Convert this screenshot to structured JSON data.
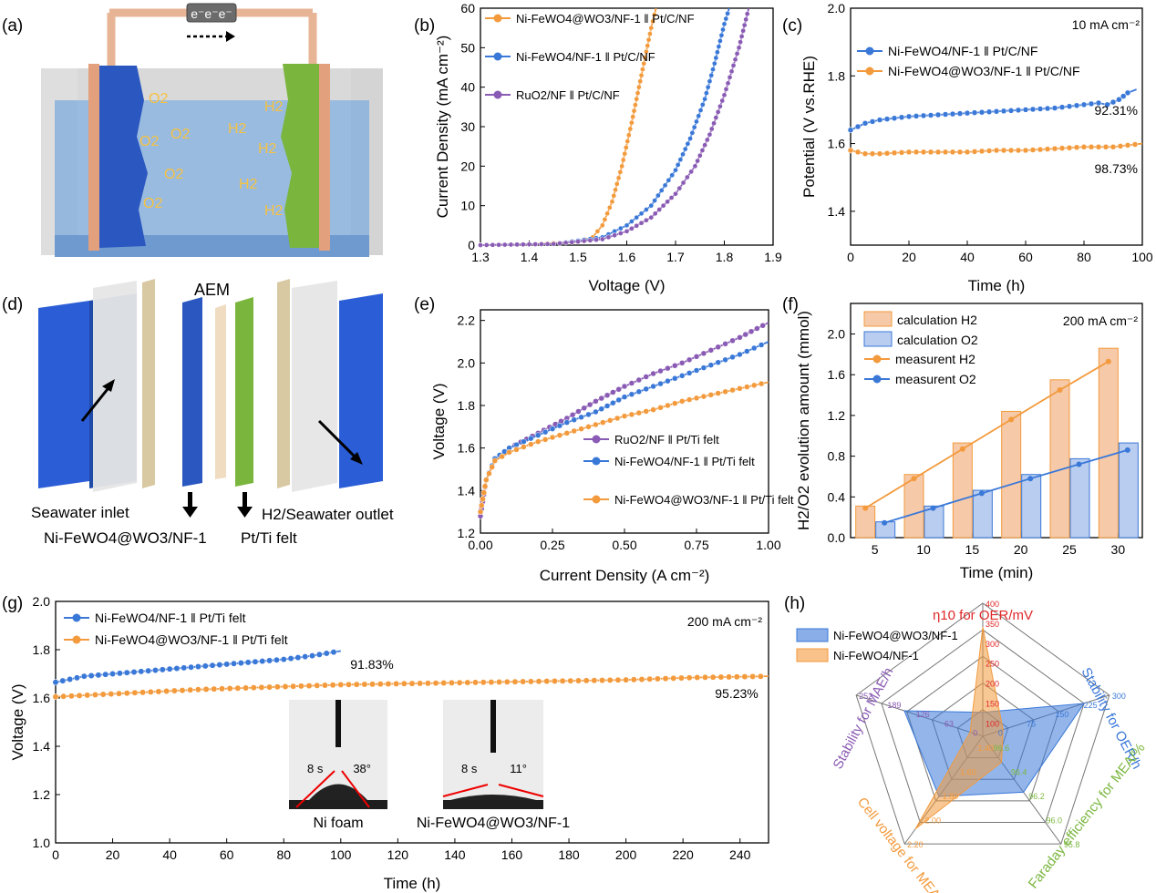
{
  "colors": {
    "orange": "#f39a3c",
    "blue": "#3a78d8",
    "purple": "#8a5bb4",
    "green": "#7ab63e",
    "electrolyte": "#8fb4dd",
    "blue_plate": "#2a57c0",
    "copper": "#e3a07c",
    "red_label": "#e0282a"
  },
  "panel_a": {
    "label": "(a)",
    "battery_label": "e⁻e⁻e⁻",
    "o2_label": "O2",
    "h2_label": "H2"
  },
  "panel_d": {
    "label": "(d)",
    "aem_label": "AEM",
    "inlet_label": "Seawater inlet",
    "outlet_label": "H2/Seawater outlet",
    "anode_label": "Ni-FeWO4@WO3/NF-1",
    "cathode_label": "Pt/Ti felt"
  },
  "chart_data": [
    {
      "panel": "(b)",
      "type": "line",
      "xlabel": "Voltage (V)",
      "ylabel": "Current Density (mA cm⁻²)",
      "xlim": [
        1.3,
        1.9
      ],
      "ylim": [
        0,
        60
      ],
      "xticks": [
        "1.3",
        "1.4",
        "1.5",
        "1.6",
        "1.7",
        "1.8",
        "1.9"
      ],
      "yticks": [
        "0",
        "10",
        "20",
        "30",
        "40",
        "50",
        "60"
      ],
      "legend": "top-left",
      "series": [
        {
          "name": "Ni-FeWO4@WO3/NF-1 ‖ Pt/C/NF",
          "color": "orange",
          "x": [
            1.3,
            1.4,
            1.5,
            1.53,
            1.55,
            1.57,
            1.59,
            1.61,
            1.63,
            1.65,
            1.66
          ],
          "y": [
            0,
            0.2,
            0.8,
            2,
            5,
            11,
            20,
            31,
            43,
            55,
            60
          ]
        },
        {
          "name": "Ni-FeWO4/NF-1 ‖ Pt/C/NF",
          "color": "blue",
          "x": [
            1.3,
            1.45,
            1.55,
            1.6,
            1.65,
            1.7,
            1.73,
            1.76,
            1.78,
            1.8,
            1.81
          ],
          "y": [
            0,
            0.3,
            2,
            5,
            10,
            19,
            27,
            37,
            46,
            56,
            60
          ]
        },
        {
          "name": "RuO2/NF ‖ Pt/C/NF",
          "color": "purple",
          "x": [
            1.3,
            1.45,
            1.55,
            1.6,
            1.65,
            1.7,
            1.74,
            1.77,
            1.8,
            1.83,
            1.85
          ],
          "y": [
            0,
            0.3,
            1.5,
            3.5,
            7,
            13,
            20,
            28,
            38,
            50,
            60
          ]
        }
      ]
    },
    {
      "panel": "(c)",
      "type": "line",
      "xlabel": "Time (h)",
      "ylabel": "Potential (V vs.RHE)",
      "xlim": [
        0,
        100
      ],
      "ylim": [
        1.3,
        2.0
      ],
      "xticks": [
        "0",
        "20",
        "40",
        "60",
        "80",
        "100"
      ],
      "yticks": [
        "1.4",
        "1.6",
        "1.8",
        "2.0"
      ],
      "annotation": "10 mA cm⁻²",
      "legend": "top-left",
      "series": [
        {
          "name": "Ni-FeWO4/NF-1 ‖ Pt/C/NF",
          "color": "blue",
          "x": [
            0,
            5,
            10,
            20,
            30,
            40,
            50,
            60,
            70,
            80,
            85,
            88,
            92,
            95,
            98
          ],
          "y": [
            1.64,
            1.66,
            1.67,
            1.68,
            1.685,
            1.69,
            1.695,
            1.7,
            1.705,
            1.715,
            1.72,
            1.715,
            1.73,
            1.75,
            1.76
          ]
        },
        {
          "name": "Ni-FeWO4@WO3/NF-1 ‖ Pt/C/NF",
          "color": "orange",
          "x": [
            0,
            5,
            10,
            20,
            30,
            40,
            50,
            60,
            70,
            80,
            90,
            100
          ],
          "y": [
            1.58,
            1.57,
            1.57,
            1.575,
            1.575,
            1.575,
            1.58,
            1.58,
            1.585,
            1.59,
            1.59,
            1.6
          ]
        }
      ],
      "labels": [
        "92.31%",
        "98.73%"
      ]
    },
    {
      "panel": "(e)",
      "type": "line",
      "xlabel": "Current Density (A cm⁻²)",
      "ylabel": "Voltage (V)",
      "xlim": [
        0,
        1.0
      ],
      "ylim": [
        1.2,
        2.25
      ],
      "xticks": [
        "0.00",
        "0.25",
        "0.50",
        "0.75",
        "1.00"
      ],
      "yticks": [
        "1.2",
        "1.4",
        "1.6",
        "1.8",
        "2.0",
        "2.2"
      ],
      "legend": "bottom-right",
      "series": [
        {
          "name": "RuO2/NF ‖ Pt/Ti felt",
          "color": "purple",
          "x": [
            0,
            0.02,
            0.05,
            0.1,
            0.2,
            0.3,
            0.4,
            0.5,
            0.6,
            0.7,
            0.8,
            0.9,
            1.0
          ],
          "y": [
            1.28,
            1.45,
            1.55,
            1.6,
            1.67,
            1.74,
            1.82,
            1.89,
            1.95,
            2.0,
            2.06,
            2.12,
            2.19
          ]
        },
        {
          "name": "Ni-FeWO4/NF-1 ‖ Pt/Ti felt",
          "color": "blue",
          "x": [
            0,
            0.02,
            0.05,
            0.1,
            0.2,
            0.3,
            0.4,
            0.5,
            0.6,
            0.7,
            0.8,
            0.9,
            1.0
          ],
          "y": [
            1.3,
            1.45,
            1.55,
            1.6,
            1.66,
            1.72,
            1.77,
            1.84,
            1.89,
            1.94,
            1.99,
            2.04,
            2.1
          ]
        },
        {
          "name": "Ni-FeWO4@WO3/NF-1 ‖ Pt/Ti felt",
          "color": "orange",
          "x": [
            0,
            0.02,
            0.05,
            0.1,
            0.2,
            0.3,
            0.4,
            0.5,
            0.6,
            0.7,
            0.8,
            0.9,
            1.0
          ],
          "y": [
            1.3,
            1.45,
            1.54,
            1.58,
            1.63,
            1.67,
            1.71,
            1.75,
            1.78,
            1.82,
            1.85,
            1.88,
            1.91
          ]
        }
      ]
    },
    {
      "panel": "(f)",
      "type": "bar",
      "xlabel": "Time (min)",
      "ylabel": "H2/O2 evolution amount (mmol)",
      "xlim": [
        2.5,
        32.5
      ],
      "ylim": [
        0,
        2.3
      ],
      "xticks": [
        "5",
        "10",
        "15",
        "20",
        "25",
        "30"
      ],
      "yticks": [
        "0.0",
        "0.4",
        "0.8",
        "1.2",
        "1.6",
        "2.0"
      ],
      "annotation": "200 mA cm⁻²",
      "legend": "top-left",
      "categories": [
        5,
        10,
        15,
        20,
        25,
        30
      ],
      "series": [
        {
          "name": "calculation H2",
          "kind": "bar",
          "color": "orange",
          "values": [
            0.31,
            0.62,
            0.93,
            1.24,
            1.55,
            1.86
          ]
        },
        {
          "name": "calculation O2",
          "kind": "bar",
          "color": "blue",
          "values": [
            0.155,
            0.31,
            0.465,
            0.62,
            0.775,
            0.93
          ]
        },
        {
          "name": "measurent H2",
          "kind": "line",
          "color": "orange",
          "values": [
            0.29,
            0.58,
            0.87,
            1.16,
            1.45,
            1.73
          ]
        },
        {
          "name": "measurent O2",
          "kind": "line",
          "color": "blue",
          "values": [
            0.145,
            0.29,
            0.435,
            0.58,
            0.72,
            0.86
          ]
        }
      ]
    },
    {
      "panel": "(g)",
      "type": "line",
      "xlabel": "Time (h)",
      "ylabel": "Voltage (V)",
      "xlim": [
        0,
        250
      ],
      "ylim": [
        1.0,
        2.0
      ],
      "xticks": [
        "0",
        "20",
        "40",
        "60",
        "80",
        "100",
        "120",
        "140",
        "160",
        "180",
        "200",
        "220",
        "240"
      ],
      "yticks": [
        "1.0",
        "1.2",
        "1.4",
        "1.6",
        "1.8",
        "2.0"
      ],
      "annotation": "200 mA cm⁻²",
      "legend": "top-left",
      "series": [
        {
          "name": "Ni-FeWO4/NF-1 ‖ Pt/Ti felt",
          "color": "blue",
          "x": [
            0,
            10,
            20,
            30,
            40,
            50,
            60,
            70,
            80,
            90,
            100
          ],
          "y": [
            1.665,
            1.69,
            1.7,
            1.71,
            1.72,
            1.73,
            1.74,
            1.75,
            1.76,
            1.775,
            1.795
          ]
        },
        {
          "name": "Ni-FeWO4@WO3/NF-1 ‖ Pt/Ti felt",
          "color": "orange",
          "x": [
            0,
            25,
            50,
            75,
            100,
            125,
            150,
            175,
            200,
            225,
            250
          ],
          "y": [
            1.605,
            1.62,
            1.635,
            1.645,
            1.655,
            1.66,
            1.665,
            1.67,
            1.675,
            1.685,
            1.69
          ]
        }
      ],
      "labels": [
        "91.83%",
        "95.23%"
      ],
      "inset": [
        {
          "caption": "Ni foam",
          "time": "8 s",
          "angle": "38°"
        },
        {
          "caption": "Ni-FeWO4@WO3/NF-1",
          "time": "8 s",
          "angle": "11°"
        }
      ]
    },
    {
      "panel": "(h)",
      "type": "radar",
      "axes": [
        "η10 for OER/mV",
        "Stability for OER/h",
        "Faraday efficiency for MEA/%",
        "Cell voltage for MEA/V",
        "Stability for MAE/h"
      ],
      "axis_colors": [
        "red_label",
        "blue",
        "green",
        "orange",
        "purple"
      ],
      "tick_labels": [
        [
          "400",
          "350",
          "300",
          "250",
          "200",
          "150",
          "100"
        ],
        [
          "300",
          "225",
          "150",
          "75",
          "0"
        ],
        [
          "95.8",
          "96.0",
          "96.2",
          "96.4",
          "96.6"
        ],
        [
          "2.20",
          "2.00",
          "1.80",
          "1.60",
          "1.40"
        ],
        [
          "252",
          "189",
          "126",
          "63",
          "0"
        ]
      ],
      "legend": "top-left",
      "series": [
        {
          "name": "Ni-FeWO4@WO3/NF-1",
          "color": "blue",
          "fractions": [
            0.18,
            0.8,
            0.52,
            0.56,
            0.62
          ]
        },
        {
          "name": "Ni-FeWO4/NF-1",
          "color": "orange",
          "fractions": [
            0.82,
            0.16,
            0.24,
            0.86,
            0.1
          ]
        }
      ]
    }
  ]
}
